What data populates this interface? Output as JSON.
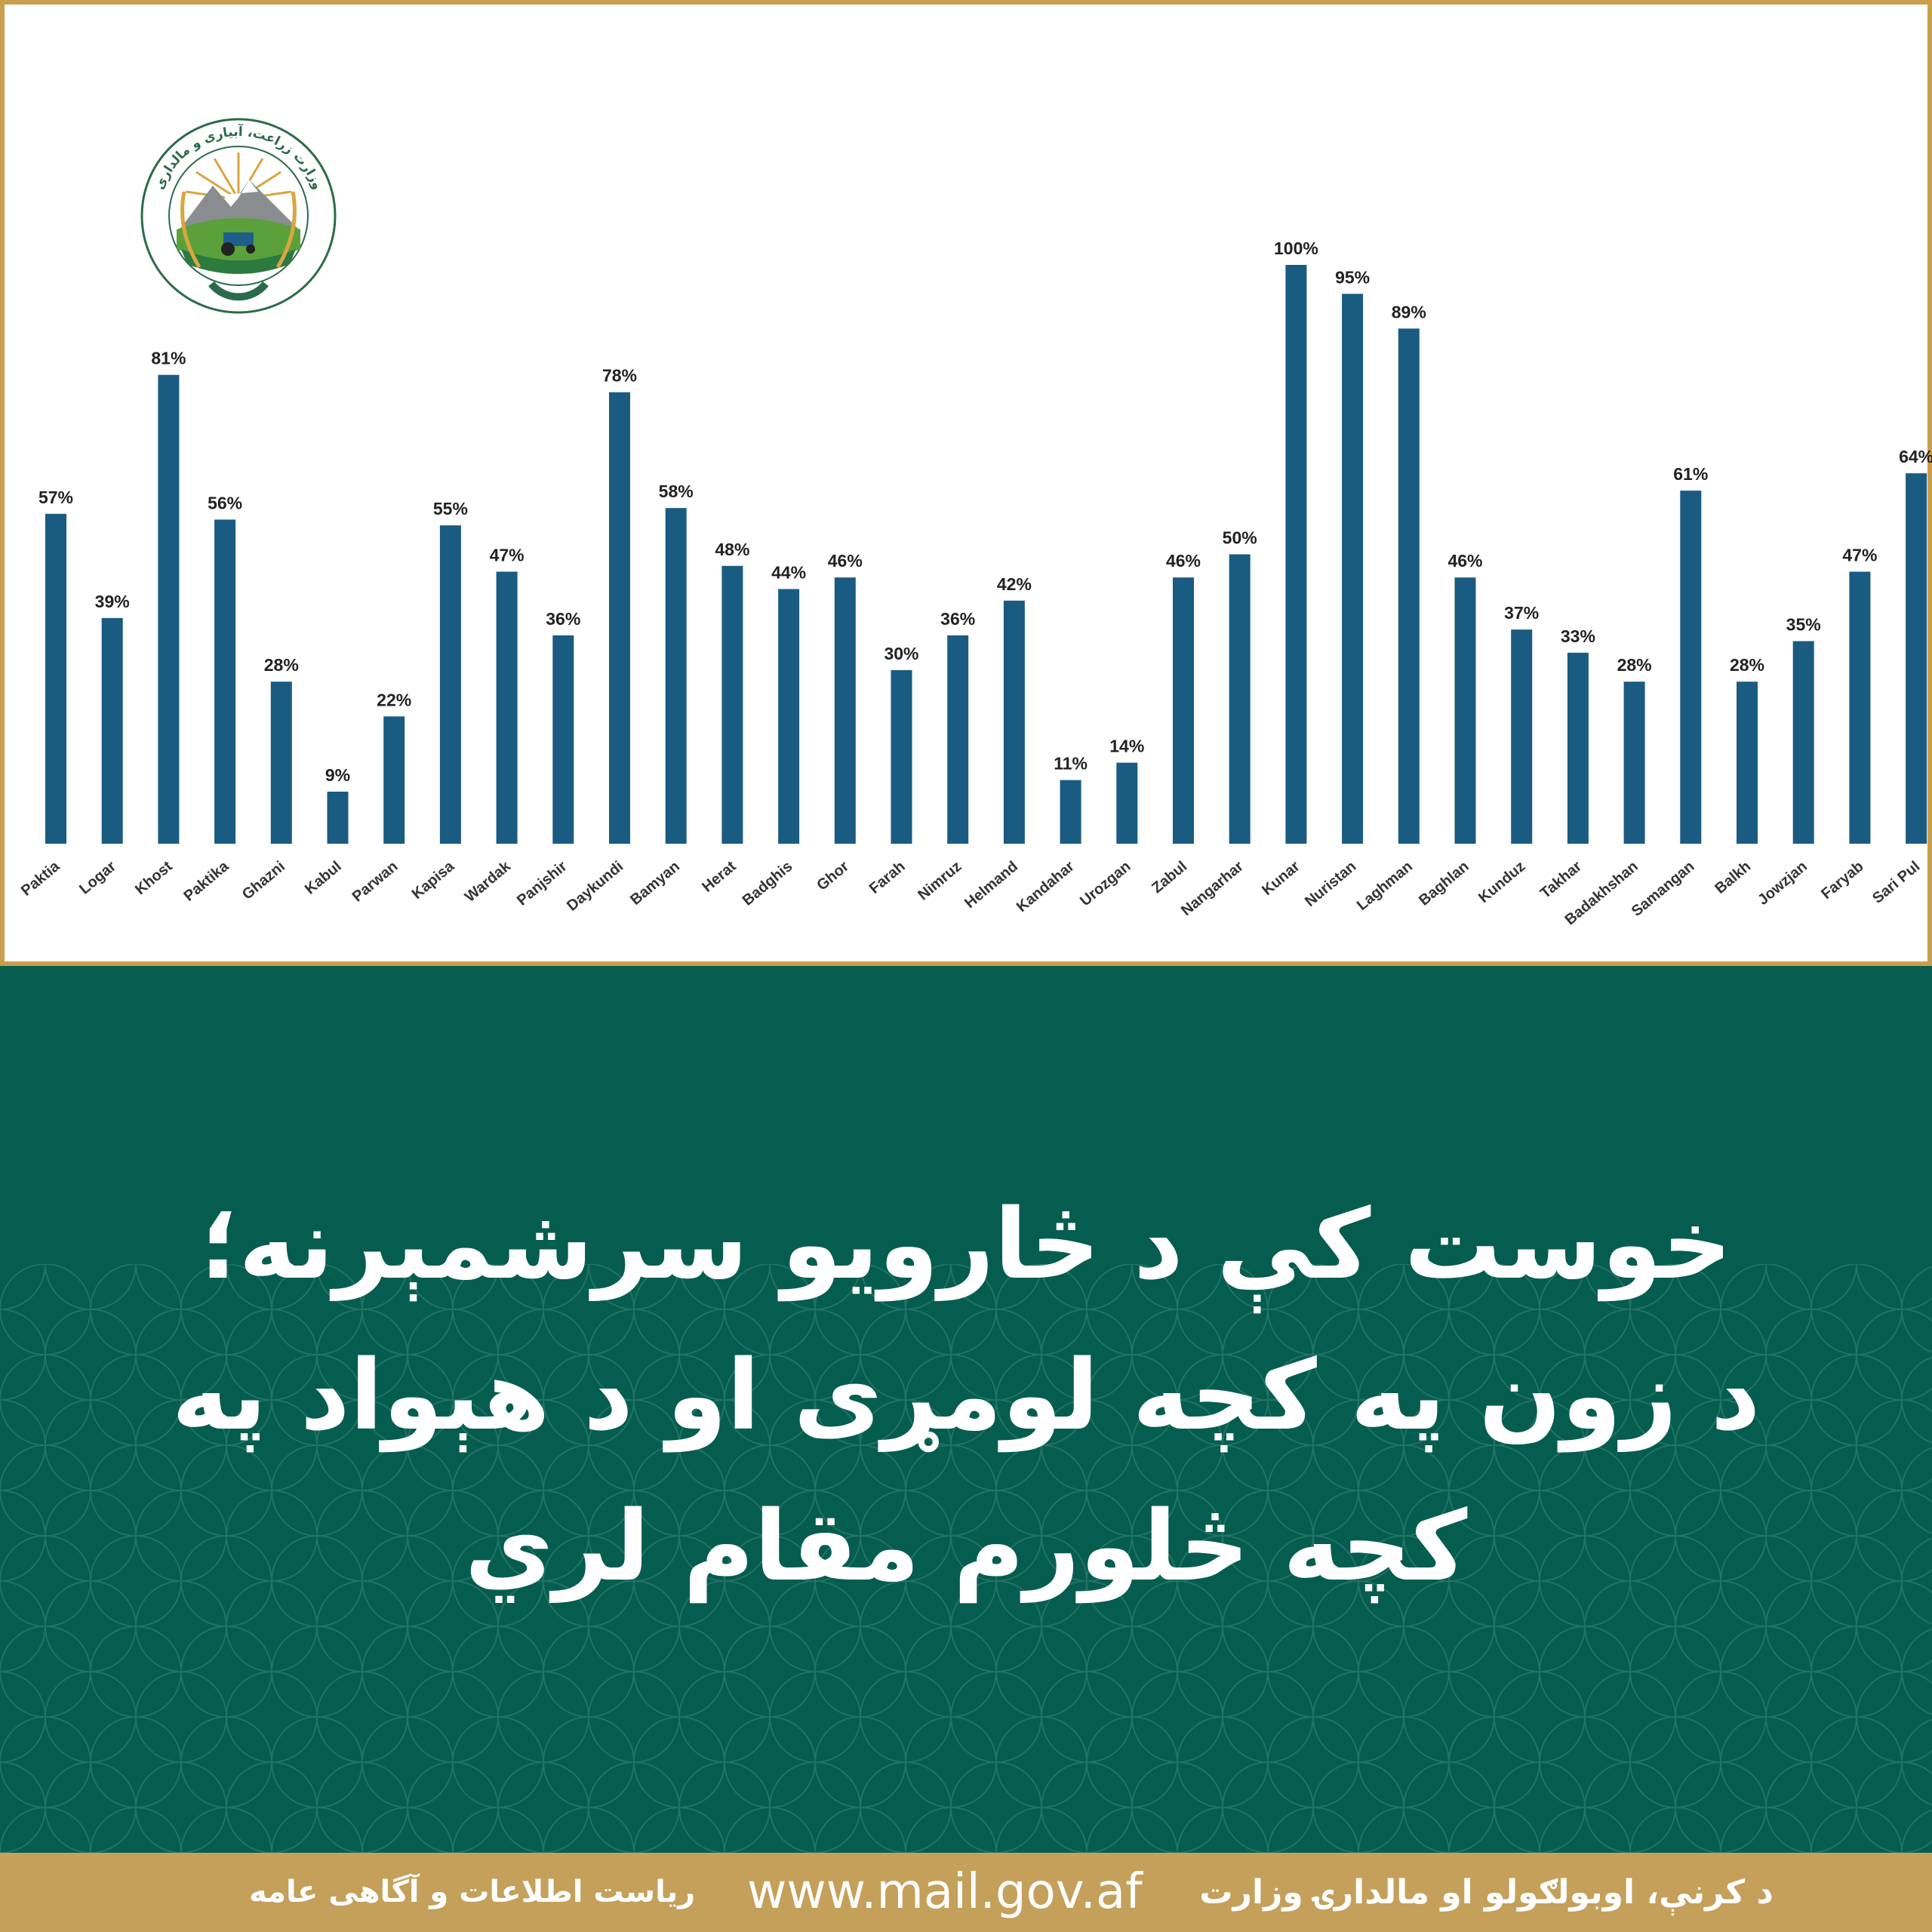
{
  "colors": {
    "bar": "#1a5b82",
    "border": "#c99e4c",
    "green": "#055d4f",
    "footer": "#c4a05a"
  },
  "logo": {
    "text": "وزارت زراعت، آبیاری و مالداری"
  },
  "chart_data": {
    "type": "bar",
    "title": "",
    "xlabel": "",
    "ylabel": "",
    "ylim": [
      0,
      100
    ],
    "grid": false,
    "categories": [
      "Paktia",
      "Logar",
      "Khost",
      "Paktika",
      "Ghazni",
      "Kabul",
      "Parwan",
      "Kapisa",
      "Wardak",
      "Panjshir",
      "Daykundi",
      "Bamyan",
      "Herat",
      "Badghis",
      "Ghor",
      "Farah",
      "Nimruz",
      "Helmand",
      "Kandahar",
      "Urozgan",
      "Zabul",
      "Nangarhar",
      "Kunar",
      "Nuristan",
      "Laghman",
      "Baghlan",
      "Kunduz",
      "Takhar",
      "Badakhshan",
      "Samangan",
      "Balkh",
      "Jowzjan",
      "Faryab",
      "Sari Pul"
    ],
    "values": [
      57,
      39,
      81,
      56,
      28,
      9,
      22,
      55,
      47,
      36,
      78,
      58,
      48,
      44,
      46,
      30,
      36,
      42,
      11,
      14,
      46,
      50,
      100,
      95,
      89,
      46,
      37,
      33,
      28,
      61,
      28,
      35,
      47,
      64
    ],
    "labels": [
      "57%",
      "39%",
      "81%",
      "56%",
      "28%",
      "9%",
      "22%",
      "55%",
      "47%",
      "36%",
      "78%",
      "58%",
      "48%",
      "44%",
      "46%",
      "30%",
      "36%",
      "42%",
      "11%",
      "14%",
      "46%",
      "50%",
      "100%",
      "95%",
      "89%",
      "46%",
      "37%",
      "33%",
      "28%",
      "61%",
      "28%",
      "35%",
      "47%",
      "64%"
    ]
  },
  "headline": {
    "line1": "خوست کې د څارویو سرشمېرنه؛",
    "line2": "د زون په کچه لومړی او د هېواد په",
    "line3": "کچه څلورم مقام لري"
  },
  "footer": {
    "ministry": "د کرنې، اوبولګولو او مالدارۍ وزارت",
    "url": "www.mail.gov.af",
    "directorate": "ریاست اطلاعات و آگاهی عامه"
  }
}
